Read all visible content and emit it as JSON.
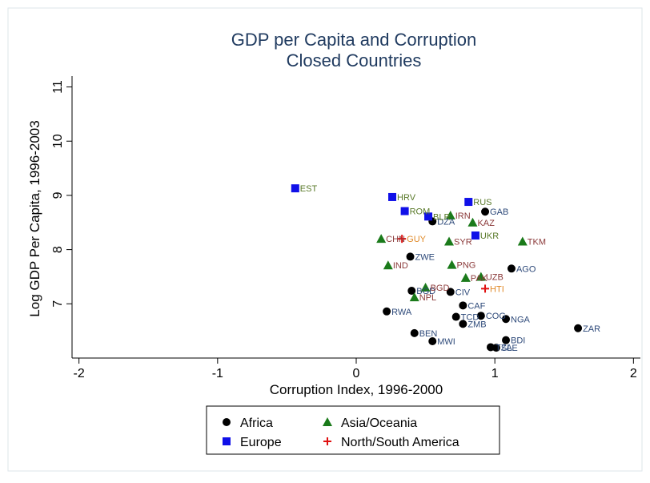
{
  "chart_data": {
    "type": "scatter",
    "title": "GDP per Capita and Corruption",
    "subtitle": "Closed Countries",
    "xlabel": "Corruption Index, 1996-2000",
    "ylabel": "Log GDP Per Capita, 1996-2003",
    "xlim": [
      -2.05,
      2.05
    ],
    "ylim": [
      6.0,
      11.2
    ],
    "xticks": [
      -2,
      -1,
      0,
      1,
      2
    ],
    "yticks": [
      7,
      8,
      9,
      10,
      11
    ],
    "grid": false,
    "legend_position": "bottom",
    "series": [
      {
        "name": "Africa",
        "marker": "circle",
        "color": "#000000",
        "label_color": "#2e4a7a",
        "points": [
          {
            "label": "GAB",
            "x": 0.93,
            "y": 8.7
          },
          {
            "label": "DZA",
            "x": 0.55,
            "y": 8.52
          },
          {
            "label": "ZWE",
            "x": 0.39,
            "y": 7.87
          },
          {
            "label": "AGO",
            "x": 1.12,
            "y": 7.65
          },
          {
            "label": "BGD",
            "x": 0.4,
            "y": 7.24
          },
          {
            "label": "CIV",
            "x": 0.68,
            "y": 7.22
          },
          {
            "label": "CAF",
            "x": 0.77,
            "y": 6.97
          },
          {
            "label": "RWA",
            "x": 0.22,
            "y": 6.86
          },
          {
            "label": "TCD",
            "x": 0.72,
            "y": 6.76
          },
          {
            "label": "COG",
            "x": 0.9,
            "y": 6.78
          },
          {
            "label": "NGA",
            "x": 1.08,
            "y": 6.72
          },
          {
            "label": "ZMB",
            "x": 0.77,
            "y": 6.63
          },
          {
            "label": "BEN",
            "x": 0.42,
            "y": 6.46
          },
          {
            "label": "MWI",
            "x": 0.55,
            "y": 6.31
          },
          {
            "label": "BDI",
            "x": 1.08,
            "y": 6.33
          },
          {
            "label": "TZA",
            "x": 0.97,
            "y": 6.2
          },
          {
            "label": "SLE",
            "x": 1.01,
            "y": 6.19
          },
          {
            "label": "ZAR",
            "x": 1.6,
            "y": 6.55
          }
        ]
      },
      {
        "name": "Asia/Oceania",
        "marker": "triangle",
        "color": "#1a7a1a",
        "label_color": "#8b3a3a",
        "points": [
          {
            "label": "IRN",
            "x": 0.68,
            "y": 8.63
          },
          {
            "label": "KAZ",
            "x": 0.84,
            "y": 8.5
          },
          {
            "label": "CHN",
            "x": 0.18,
            "y": 8.2
          },
          {
            "label": "SYR",
            "x": 0.67,
            "y": 8.15
          },
          {
            "label": "TKM",
            "x": 1.2,
            "y": 8.15
          },
          {
            "label": "IND",
            "x": 0.23,
            "y": 7.71
          },
          {
            "label": "PNG",
            "x": 0.69,
            "y": 7.72
          },
          {
            "label": "PAK",
            "x": 0.79,
            "y": 7.48
          },
          {
            "label": "UZB",
            "x": 0.9,
            "y": 7.5
          },
          {
            "label": "NPL",
            "x": 0.42,
            "y": 7.12
          },
          {
            "label": "BGD",
            "x": 0.5,
            "y": 7.3
          }
        ]
      },
      {
        "name": "Europe",
        "marker": "square",
        "color": "#1010e8",
        "label_color": "#5a7a2a",
        "points": [
          {
            "label": "EST",
            "x": -0.44,
            "y": 9.13
          },
          {
            "label": "HRV",
            "x": 0.26,
            "y": 8.97
          },
          {
            "label": "RUS",
            "x": 0.81,
            "y": 8.88
          },
          {
            "label": "ROM",
            "x": 0.35,
            "y": 8.71
          },
          {
            "label": "BLR",
            "x": 0.52,
            "y": 8.61
          },
          {
            "label": "UKR",
            "x": 0.86,
            "y": 8.26
          }
        ]
      },
      {
        "name": "North/South America",
        "marker": "plus",
        "color": "#e01010",
        "label_color": "#e08a2a",
        "points": [
          {
            "label": "GUY",
            "x": 0.33,
            "y": 8.2
          },
          {
            "label": "HTI",
            "x": 0.93,
            "y": 7.28
          }
        ]
      }
    ]
  }
}
